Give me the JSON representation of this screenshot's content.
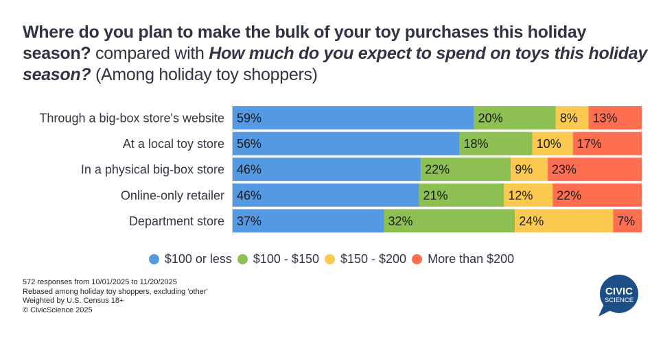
{
  "title": {
    "part1": "Where do you plan to make the bulk of your toy purchases this holiday season?",
    "part2": " compared with ",
    "part3": "How much do you expect to spend on toys this holiday season?",
    "part4": " (Among holiday toy shoppers)"
  },
  "chart_data": {
    "type": "bar",
    "orientation": "horizontal",
    "stacked": true,
    "categories": [
      "Through a big-box store's website",
      "At a local toy store",
      "In a physical big-box store",
      "Online-only retailer",
      "Department store"
    ],
    "series": [
      {
        "name": "$100 or less",
        "color": "#5599e3",
        "values": [
          59,
          56,
          46,
          46,
          37
        ]
      },
      {
        "name": "$100 - $150",
        "color": "#8dbf53",
        "values": [
          20,
          18,
          22,
          21,
          32
        ]
      },
      {
        "name": "$150 - $200",
        "color": "#fcc950",
        "values": [
          8,
          10,
          9,
          12,
          24
        ]
      },
      {
        "name": "More than $200",
        "color": "#fe6f52",
        "values": [
          13,
          17,
          23,
          22,
          7
        ]
      }
    ],
    "value_suffix": "%",
    "legend_position": "bottom",
    "grid": false
  },
  "footer": {
    "lines": [
      "572 responses from 10/01/2025 to 11/20/2025",
      "Rebased among holiday toy shoppers, excluding 'other'",
      "Weighted by U.S. Census 18+",
      "© CivicScience 2025"
    ]
  },
  "logo": {
    "line1": "CIVIC",
    "line2": "SCIENCE",
    "color": "#1d4f86"
  }
}
